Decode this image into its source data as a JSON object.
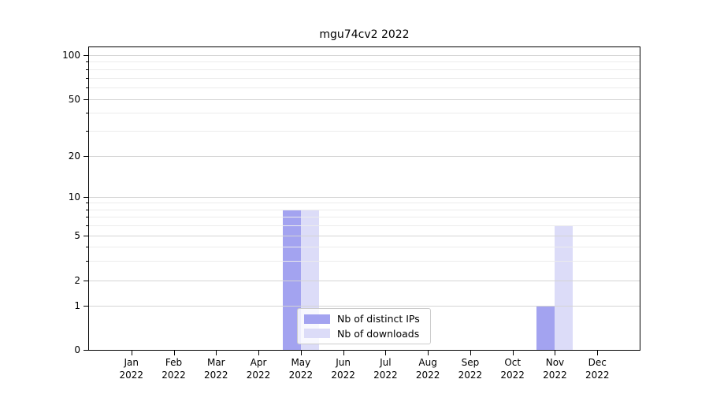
{
  "title": "mgu74cv2 2022",
  "chart_data": {
    "type": "bar",
    "title": "mgu74cv2 2022",
    "categories": [
      "Jan 2022",
      "Feb 2022",
      "Mar 2022",
      "Apr 2022",
      "May 2022",
      "Jun 2022",
      "Jul 2022",
      "Aug 2022",
      "Sep 2022",
      "Oct 2022",
      "Nov 2022",
      "Dec 2022"
    ],
    "x_tick_month_line": [
      "Jan",
      "Feb",
      "Mar",
      "Apr",
      "May",
      "Jun",
      "Jul",
      "Aug",
      "Sep",
      "Oct",
      "Nov",
      "Dec"
    ],
    "x_tick_year_line": "2022",
    "series": [
      {
        "name": "Nb of distinct IPs",
        "color": "#a3a3f0",
        "values": [
          0,
          0,
          0,
          0,
          8,
          0,
          0,
          0,
          0,
          0,
          1,
          0
        ]
      },
      {
        "name": "Nb of downloads",
        "color": "#dcdcf8",
        "values": [
          0,
          0,
          0,
          0,
          8,
          0,
          0,
          0,
          0,
          0,
          6,
          0
        ]
      }
    ],
    "y_axis": {
      "scale": "symlog",
      "ticks": [
        0,
        1,
        2,
        5,
        10,
        20,
        50,
        100
      ],
      "tick_labels": [
        "0",
        "1",
        "2",
        "5",
        "10",
        "20",
        "50",
        "100"
      ],
      "minor_ticks": [
        3,
        4,
        6,
        7,
        8,
        9,
        30,
        40,
        60,
        70,
        80,
        90
      ],
      "range": [
        0,
        110
      ]
    },
    "grid": true,
    "legend_position": "lower center"
  },
  "colors": {
    "background": "#ffffff",
    "axis": "#000000",
    "grid_major": "#d4d4d4",
    "grid_minor": "#ececec",
    "legend_border": "#cccccc"
  }
}
